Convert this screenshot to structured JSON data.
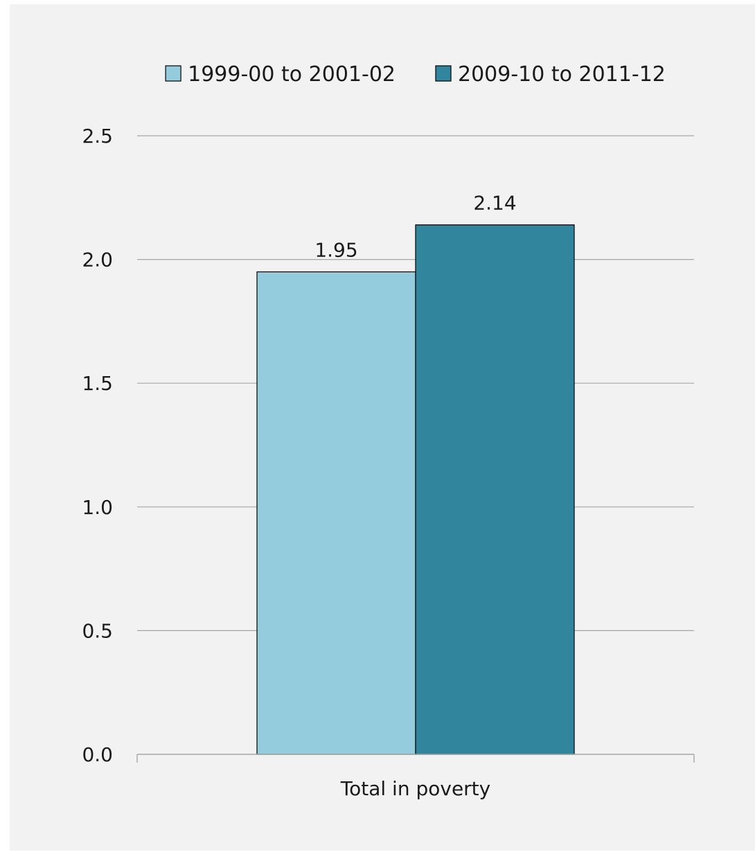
{
  "chart_data": {
    "type": "bar",
    "categories": [
      "Total in poverty"
    ],
    "series": [
      {
        "name": "1999-00 to 2001-02",
        "values": [
          1.95
        ],
        "labels": [
          "1.95"
        ],
        "color": "#94cbdd"
      },
      {
        "name": "2009-10 to 2011-12",
        "values": [
          2.14
        ],
        "labels": [
          "2.14"
        ],
        "color": "#31869e"
      }
    ],
    "ylim": [
      0,
      2.5
    ],
    "yticks": [
      0.0,
      0.5,
      1.0,
      1.5,
      2.0,
      2.5
    ],
    "ytick_labels": [
      "0.0",
      "0.5",
      "1.0",
      "1.5",
      "2.0",
      "2.5"
    ],
    "grid": true,
    "legend_position": "top",
    "background_color": "#f2f2f2",
    "gridline_color": "#a6a6a6"
  }
}
